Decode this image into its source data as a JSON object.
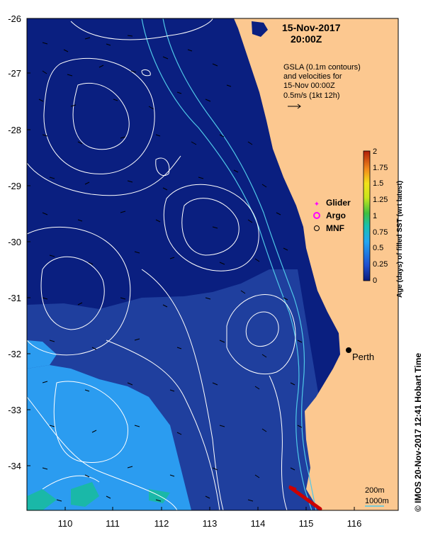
{
  "header": {
    "date": "15-Nov-2017",
    "time": "20:00Z"
  },
  "annotation": {
    "line1": "GSLA (0.1m contours)",
    "line2": "and velocities for",
    "line3": "15-Nov 00:00Z",
    "line4": "0.5m/s (1kt 12h)"
  },
  "legend": {
    "glider": "Glider",
    "argo": "Argo",
    "mnf": "MNF",
    "glider_color": "#ff00ff",
    "argo_color": "#ff00ff"
  },
  "colorbar": {
    "title": "Age (days) of filled SST (wrt latest)",
    "ticks": [
      "2",
      "1.75",
      "1.5",
      "1.25",
      "1",
      "0.75",
      "0.5",
      "0.25",
      "0"
    ]
  },
  "axes": {
    "y_ticks": [
      "-26",
      "-27",
      "-28",
      "-29",
      "-30",
      "-31",
      "-32",
      "-33",
      "-34"
    ],
    "x_ticks": [
      "110",
      "111",
      "112",
      "113",
      "114",
      "115",
      "116"
    ]
  },
  "places": {
    "perth": "Perth"
  },
  "isobaths": {
    "a": "200m",
    "b": "1000m"
  },
  "credit": "© IMOS 20-Nov-2017 12:41 Hobart Time",
  "colors": {
    "deep": "#1f3f9e",
    "navy": "#0a1f80",
    "light": "#2b9cf0",
    "land": "#fcc890",
    "teal": "#1ab8a8"
  }
}
